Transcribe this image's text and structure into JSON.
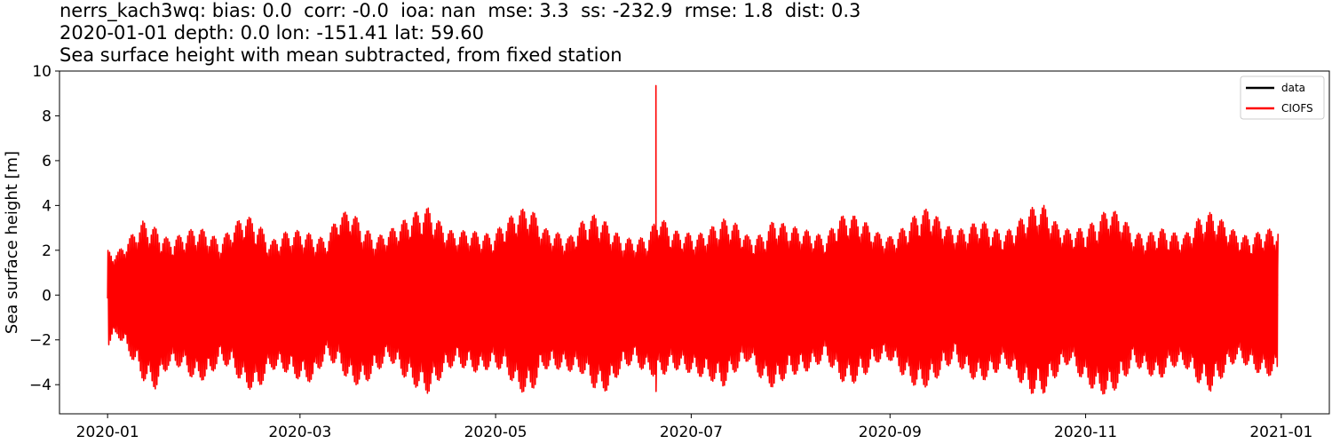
{
  "title_lines": [
    "nerrs_kach3wq: bias: 0.0  corr: -0.0  ioa: nan  mse: 3.3  ss: -232.9  rmse: 1.8  dist: 0.3",
    "2020-01-01 depth: 0.0 lon: -151.41 lat: 59.60",
    "Sea surface height with mean subtracted, from fixed station"
  ],
  "chart_data": {
    "type": "line",
    "ylabel": "Sea surface height [m]",
    "xlabel": "",
    "xlim": [
      "2019-12-17",
      "2021-01-16"
    ],
    "ylim": [
      -5.3,
      10.0
    ],
    "x_ticks": [
      "2020-01",
      "2020-03",
      "2020-05",
      "2020-07",
      "2020-09",
      "2020-11",
      "2021-01"
    ],
    "y_ticks": [
      -4,
      -2,
      0,
      2,
      4,
      6,
      8,
      10
    ],
    "y_tick_labels": [
      "−4",
      "−2",
      "0",
      "2",
      "4",
      "6",
      "8",
      "10"
    ],
    "legend": {
      "position": "top-right",
      "entries": [
        "data",
        "CIOFS"
      ]
    },
    "grid": false,
    "series": [
      {
        "name": "data",
        "color": "#000000",
        "x": [
          "2020-01-01",
          "2020-12-31"
        ],
        "y": [
          0.0,
          0.0
        ]
      },
      {
        "name": "CIOFS",
        "color": "#ff0000",
        "style": "semi-diurnal tidal oscillation; per-cycle amplitude envelope below",
        "x": [
          "2020-01-01",
          "2020-01-04",
          "2020-01-08",
          "2020-01-12",
          "2020-01-16",
          "2020-01-20",
          "2020-01-24",
          "2020-01-28",
          "2020-02-01",
          "2020-02-05",
          "2020-02-09",
          "2020-02-13",
          "2020-02-17",
          "2020-02-21",
          "2020-02-25",
          "2020-03-01",
          "2020-03-05",
          "2020-03-09",
          "2020-03-13",
          "2020-03-17",
          "2020-03-21",
          "2020-03-25",
          "2020-03-29",
          "2020-04-02",
          "2020-04-06",
          "2020-04-10",
          "2020-04-14",
          "2020-04-18",
          "2020-04-22",
          "2020-04-26",
          "2020-04-30",
          "2020-05-04",
          "2020-05-08",
          "2020-05-12",
          "2020-05-16",
          "2020-05-20",
          "2020-05-24",
          "2020-05-28",
          "2020-06-01",
          "2020-06-05",
          "2020-06-09",
          "2020-06-13",
          "2020-06-17",
          "2020-06-21",
          "2020-06-25",
          "2020-06-29",
          "2020-07-03",
          "2020-07-07",
          "2020-07-11",
          "2020-07-15",
          "2020-07-19",
          "2020-07-23",
          "2020-07-27",
          "2020-07-31",
          "2020-08-04",
          "2020-08-08",
          "2020-08-12",
          "2020-08-16",
          "2020-08-20",
          "2020-08-24",
          "2020-08-28",
          "2020-09-01",
          "2020-09-05",
          "2020-09-09",
          "2020-09-13",
          "2020-09-17",
          "2020-09-21",
          "2020-09-25",
          "2020-09-29",
          "2020-10-03",
          "2020-10-07",
          "2020-10-11",
          "2020-10-15",
          "2020-10-19",
          "2020-10-23",
          "2020-10-27",
          "2020-10-31",
          "2020-11-04",
          "2020-11-08",
          "2020-11-12",
          "2020-11-16",
          "2020-11-20",
          "2020-11-24",
          "2020-11-28",
          "2020-12-02",
          "2020-12-06",
          "2020-12-10",
          "2020-12-14",
          "2020-12-18",
          "2020-12-22",
          "2020-12-26",
          "2020-12-31"
        ],
        "y_high": [
          2.0,
          1.9,
          2.6,
          3.3,
          3.0,
          2.5,
          2.7,
          3.0,
          2.9,
          2.4,
          3.1,
          3.6,
          3.2,
          2.4,
          2.8,
          2.9,
          2.7,
          2.5,
          3.6,
          3.8,
          3.0,
          2.6,
          2.9,
          3.3,
          3.7,
          3.9,
          3.2,
          2.8,
          2.9,
          2.8,
          2.7,
          3.3,
          3.8,
          3.9,
          3.0,
          2.8,
          2.6,
          3.3,
          3.6,
          3.2,
          2.6,
          2.5,
          2.6,
          3.6,
          2.9,
          2.8,
          2.7,
          3.0,
          3.4,
          3.2,
          2.6,
          2.7,
          3.4,
          3.1,
          3.0,
          2.8,
          2.6,
          3.5,
          3.6,
          3.3,
          2.8,
          2.6,
          3.0,
          3.6,
          3.9,
          3.3,
          2.9,
          3.0,
          3.4,
          3.0,
          2.8,
          3.3,
          3.9,
          4.0,
          3.2,
          2.9,
          3.0,
          3.3,
          3.9,
          3.6,
          2.8,
          2.7,
          3.0,
          2.8,
          2.7,
          3.4,
          3.7,
          3.3,
          2.8,
          2.6,
          2.9,
          3.0
        ],
        "y_low": [
          -2.3,
          -1.8,
          -2.7,
          -3.8,
          -4.2,
          -3.2,
          -3.2,
          -3.8,
          -3.8,
          -3.0,
          -3.3,
          -4.2,
          -4.2,
          -3.3,
          -3.4,
          -3.8,
          -3.9,
          -2.8,
          -3.2,
          -4.0,
          -4.0,
          -3.4,
          -2.9,
          -3.6,
          -4.1,
          -4.4,
          -3.7,
          -3.1,
          -3.3,
          -3.5,
          -3.2,
          -3.4,
          -4.3,
          -4.4,
          -3.3,
          -3.3,
          -3.4,
          -3.5,
          -4.2,
          -4.3,
          -3.4,
          -3.0,
          -3.5,
          -3.7,
          -3.3,
          -3.4,
          -3.6,
          -3.8,
          -4.1,
          -3.4,
          -2.9,
          -3.8,
          -4.2,
          -3.6,
          -3.5,
          -3.3,
          -2.8,
          -3.8,
          -4.0,
          -3.6,
          -3.0,
          -2.9,
          -3.6,
          -4.1,
          -4.1,
          -3.5,
          -2.9,
          -3.6,
          -3.9,
          -3.6,
          -3.1,
          -3.8,
          -4.4,
          -4.4,
          -3.6,
          -3.0,
          -3.8,
          -4.3,
          -4.5,
          -4.0,
          -3.1,
          -3.5,
          -3.8,
          -3.2,
          -3.2,
          -3.9,
          -4.3,
          -3.6,
          -2.9,
          -3.2,
          -3.6,
          -3.6
        ],
        "spike": {
          "x": "2020-06-20",
          "high": 9.35,
          "low": -4.3
        }
      }
    ]
  }
}
